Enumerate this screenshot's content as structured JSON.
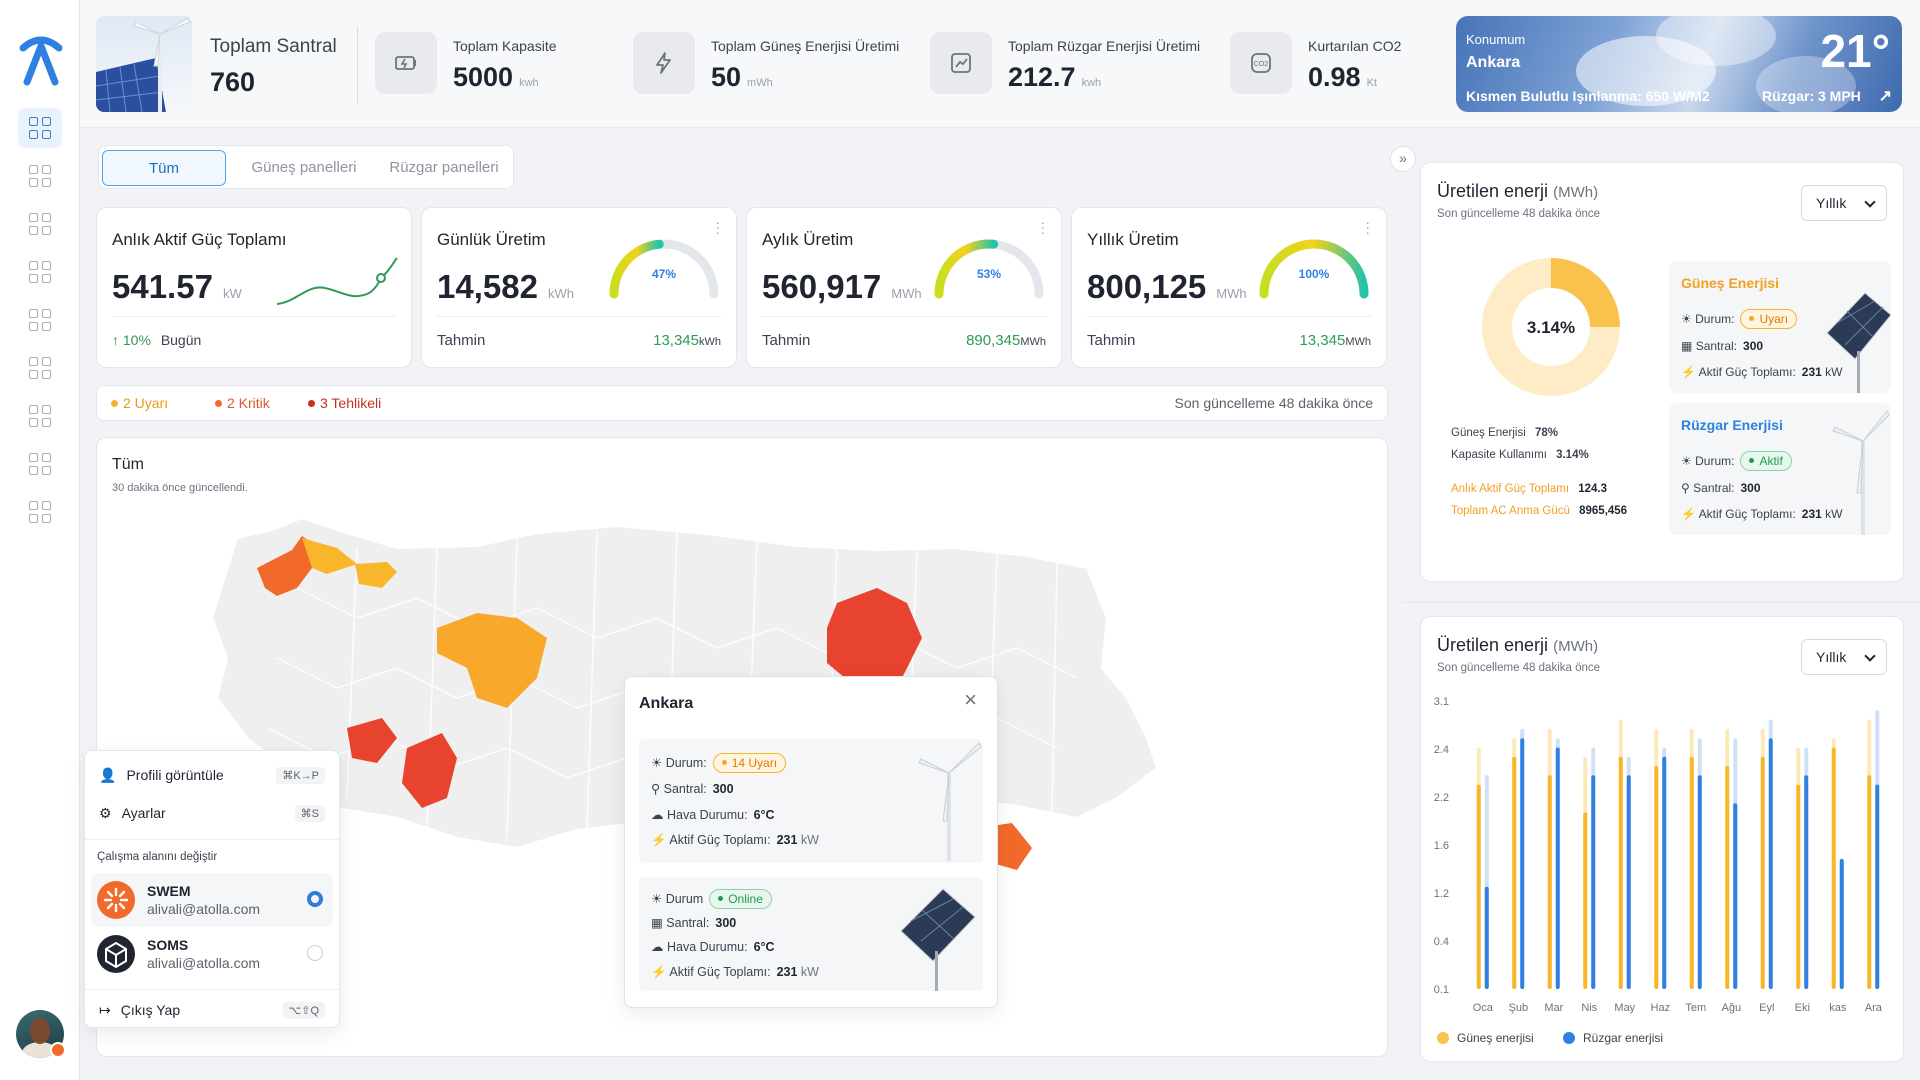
{
  "app": {
    "avatar_status": "online"
  },
  "sidebar": {
    "items": [
      "dashboard",
      "plants",
      "panels",
      "turbines",
      "reports",
      "alerts",
      "analytics",
      "maintenance",
      "settings"
    ]
  },
  "header": {
    "total_plants": {
      "label": "Toplam Santral",
      "value": "760"
    },
    "stats": [
      {
        "label": "Toplam Kapasite",
        "value": "5000",
        "unit": "kwh",
        "icon": "battery-icon"
      },
      {
        "label": "Toplam Güneş Enerjisi Üretimi",
        "value": "50",
        "unit": "mWh",
        "icon": "lightning-icon"
      },
      {
        "label": "Toplam Rüzgar Enerjisi Üretimi",
        "value": "212.7",
        "unit": "kwh",
        "icon": "trend-up-icon"
      },
      {
        "label": "Kurtarılan CO2",
        "value": "0.98",
        "unit": "Kt",
        "icon": "co2-icon"
      }
    ],
    "weather": {
      "location_label": "Konumum",
      "city": "Ankara",
      "temperature": "21°",
      "description": "Kısmen Bulutlu Işınlanma: 650 W/M2",
      "wind": "Rüzgar: 3 MPH",
      "arrow": "↗"
    }
  },
  "filter_tabs": [
    "Tüm",
    "Güneş panelleri",
    "Rüzgar panelleri"
  ],
  "kpis": [
    {
      "title": "Anlık Aktif Güç Toplamı",
      "value": "541.57",
      "unit": "kW",
      "change": "10%",
      "change_label": "Bugün"
    },
    {
      "title": "Günlük Üretim",
      "value": "14,582",
      "unit": "kWh",
      "gauge_percent": 47,
      "gauge_label": "47%",
      "forecast_label": "Tahmin",
      "forecast_value": "13,345",
      "forecast_unit": "kWh"
    },
    {
      "title": "Aylık Üretim",
      "value": "560,917",
      "unit": "MWh",
      "gauge_percent": 53,
      "gauge_label": "53%",
      "forecast_label": "Tahmin",
      "forecast_value": "890,345",
      "forecast_unit": "MWh"
    },
    {
      "title": "Yıllık Üretim",
      "value": "800,125",
      "unit": "MWh",
      "gauge_percent": 100,
      "gauge_label": "100%",
      "forecast_label": "Tahmin",
      "forecast_value": "13,345",
      "forecast_unit": "MWh"
    }
  ],
  "alerts": {
    "warning": "2 Uyarı",
    "critical": "2 Kritik",
    "danger": "3 Tehlikeli",
    "updated": "Son güncelleme 48 dakika önce",
    "colors": {
      "warning": "#f5b52a",
      "critical": "#f26a2b",
      "danger": "#e0412f"
    }
  },
  "map": {
    "title": "Tüm",
    "subtitle": "30 dakika önce güncellendi."
  },
  "popup": {
    "title": "Ankara",
    "close": "×",
    "wind": {
      "status_label": "Durum:",
      "status": "14 Uyarı",
      "plant_label": "Santral:",
      "plant": "300",
      "weather_label": "Hava Durumu:",
      "weather": "6°C",
      "power_label": "Aktif Güç Toplamı:",
      "power": "231",
      "power_unit": "kW"
    },
    "solar": {
      "status_label": "Durum",
      "status": "Online",
      "plant_label": "Santral:",
      "plant": "300",
      "weather_label": "Hava Durumu:",
      "weather": "6°C",
      "power_label": "Aktif Güç Toplamı:",
      "power": "231",
      "power_unit": "kW"
    }
  },
  "user_menu": {
    "profile": "Profili görüntüle",
    "profile_kbd": "⌘K→P",
    "settings": "Ayarlar",
    "settings_kbd": "⌘S",
    "switch_label": "Çalışma alanını değiştir",
    "workspaces": [
      {
        "name": "SWEM",
        "email": "alivali@atolla.com",
        "selected": true
      },
      {
        "name": "SOMS",
        "email": "alivali@atolla.com",
        "selected": false
      }
    ],
    "logout": "Çıkış Yap",
    "logout_kbd": "⌥⇧Q"
  },
  "energy_panel": {
    "title": "Üretilen enerji",
    "title_unit": "(MWh)",
    "subtitle": "Son güncelleme 48 dakika önce",
    "period": "Yıllık",
    "donut_percent": 3.14,
    "donut_label": "3.14%",
    "stats": [
      {
        "label": "Güneş Enerjisi",
        "value": "78%"
      },
      {
        "label": "Kapasite Kullanımı",
        "value": "3.14%"
      },
      {
        "label": "Anlık Aktif Güç Toplamı",
        "value": "124.3"
      },
      {
        "label": "Toplam AC Anma Gücü",
        "value": "8965,456"
      }
    ],
    "solar_card": {
      "title": "Güneş Enerjisi",
      "status_label": "Durum:",
      "status": "Uyarı",
      "plant_label": "Santral:",
      "plant": "300",
      "power_label": "Aktif Güç Toplamı:",
      "power": "231",
      "power_unit": "kW"
    },
    "wind_card": {
      "title": "Rüzgar Enerjisi",
      "status_label": "Durum:",
      "status": "Aktif",
      "plant_label": "Santral:",
      "plant": "300",
      "power_label": "Aktif Güç Toplamı:",
      "power": "231",
      "power_unit": "kW"
    }
  },
  "energy_chart": {
    "title": "Üretilen enerji",
    "title_unit": "(MWh)",
    "subtitle": "Son güncelleme 48 dakika önce",
    "period": "Yıllık",
    "legend": {
      "solar": "Güneş enerjisi",
      "wind": "Rüzgar enerjisi"
    }
  },
  "chart_data": {
    "type": "bar",
    "categories": [
      "Oca",
      "Şub",
      "Mar",
      "Nis",
      "May",
      "Haz",
      "Tem",
      "Ağu",
      "Eyl",
      "Eki",
      "kas",
      "Ara"
    ],
    "ytick_labels": [
      "3.1",
      "2.4",
      "2.2",
      "1.6",
      "1.2",
      "0.4",
      "0.1"
    ],
    "ylim": [
      0,
      3.1
    ],
    "series": [
      {
        "name": "Güneş enerjisi",
        "color": "#f8b62b",
        "values": [
          2.2,
          2.5,
          2.3,
          1.9,
          2.5,
          2.4,
          2.5,
          2.4,
          2.5,
          2.2,
          2.6,
          2.3
        ],
        "max_values": [
          2.6,
          2.7,
          2.8,
          2.5,
          2.9,
          2.8,
          2.8,
          2.8,
          2.8,
          2.6,
          2.7,
          2.9
        ]
      },
      {
        "name": "Rüzgar enerjisi",
        "color": "#2f80e0",
        "values": [
          1.1,
          2.7,
          2.6,
          2.3,
          2.3,
          2.5,
          2.3,
          2.0,
          2.7,
          2.3,
          1.4,
          2.2
        ],
        "max_values": [
          2.3,
          2.8,
          2.7,
          2.6,
          2.5,
          2.6,
          2.7,
          2.7,
          2.9,
          2.6,
          1.4,
          3.0
        ]
      }
    ]
  }
}
